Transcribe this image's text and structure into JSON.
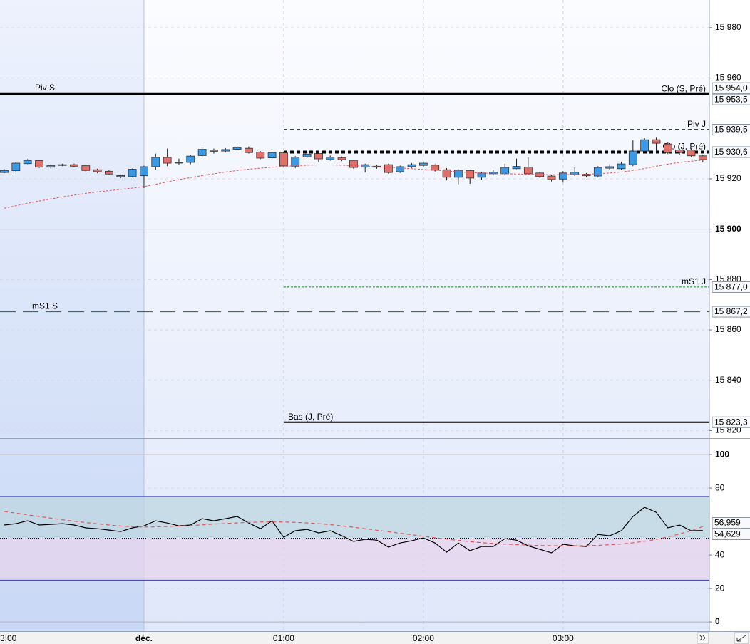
{
  "chart_data": [
    {
      "type": "candlestick",
      "categories": [
        "3:00",
        null,
        null,
        null,
        null,
        null,
        null,
        null,
        null,
        null,
        null,
        null,
        "déc.",
        null,
        null,
        null,
        null,
        null,
        null,
        null,
        null,
        null,
        null,
        null,
        "01:00",
        null,
        null,
        null,
        null,
        null,
        null,
        null,
        null,
        null,
        null,
        null,
        "02:00",
        null,
        null,
        null,
        null,
        null,
        null,
        null,
        null,
        null,
        null,
        null,
        "03:00",
        null,
        null,
        null,
        null,
        null,
        null,
        null,
        null,
        null,
        null,
        null,
        null
      ],
      "open": [
        15922.5,
        15923.2,
        15926.0,
        15927.2,
        15924.6,
        15925.3,
        15925.6,
        15925.2,
        15923.6,
        15923.0,
        15920.8,
        15921.0,
        15921.2,
        15924.8,
        15928.5,
        15926.3,
        15926.5,
        15929.2,
        15930.9,
        15931.0,
        15931.7,
        15932.1,
        15930.6,
        15928.3,
        15930.3,
        15925.0,
        15928.7,
        15930.0,
        15927.6,
        15928.3,
        15927.3,
        15924.6,
        15924.6,
        15925.6,
        15922.8,
        15924.8,
        15925.3,
        15925.4,
        15923.6,
        15920.6,
        15923.3,
        15920.6,
        15922.0,
        15922.0,
        15924.0,
        15924.6,
        15922.3,
        15921.1,
        15919.9,
        15921.6,
        15921.8,
        15921.1,
        15924.2,
        15924.0,
        15925.6,
        15931.0,
        15935.5,
        15933.8,
        15931.4,
        15931.4,
        15929.1
      ],
      "high": [
        15923.8,
        15926.5,
        15927.8,
        15927.6,
        15925.8,
        15926.0,
        15926.0,
        15925.5,
        15924.0,
        15923.4,
        15921.6,
        15924.1,
        15925.2,
        15930.0,
        15932.0,
        15928.0,
        15929.6,
        15932.3,
        15932.0,
        15932.2,
        15933.0,
        15932.8,
        15931.0,
        15930.8,
        15930.8,
        15929.0,
        15930.5,
        15931.0,
        15929.2,
        15928.8,
        15927.6,
        15926.0,
        15925.5,
        15926.0,
        15925.2,
        15926.2,
        15926.8,
        15925.8,
        15924.2,
        15923.8,
        15923.6,
        15922.8,
        15923.5,
        15926.0,
        15928.0,
        15928.5,
        15922.7,
        15921.5,
        15923.0,
        15924.5,
        15922.3,
        15925.0,
        15925.8,
        15926.8,
        15935.3,
        15936.1,
        15936.3,
        15934.4,
        15932.0,
        15932.0,
        15929.5
      ],
      "low": [
        15922.2,
        15922.8,
        15925.8,
        15924.3,
        15924.0,
        15925.0,
        15924.7,
        15922.8,
        15922.2,
        15921.5,
        15920.3,
        15920.6,
        15916.3,
        15923.5,
        15925.0,
        15925.5,
        15925.8,
        15928.8,
        15930.0,
        15930.5,
        15931.3,
        15930.0,
        15927.8,
        15927.8,
        15924.6,
        15924.3,
        15928.2,
        15926.6,
        15927.2,
        15927.0,
        15924.0,
        15922.5,
        15924.0,
        15922.0,
        15922.3,
        15924.3,
        15924.8,
        15922.9,
        15919.4,
        15917.8,
        15918.0,
        15919.6,
        15921.3,
        15921.3,
        15923.8,
        15921.5,
        15920.3,
        15919.0,
        15918.5,
        15921.1,
        15920.6,
        15920.6,
        15923.6,
        15923.6,
        15925.0,
        15930.4,
        15930.8,
        15929.8,
        15929.6,
        15928.7,
        15926.5
      ],
      "close": [
        15923.3,
        15926.2,
        15927.3,
        15924.6,
        15925.2,
        15925.6,
        15925.0,
        15923.3,
        15922.8,
        15921.9,
        15921.3,
        15923.8,
        15924.8,
        15928.5,
        15926.2,
        15926.5,
        15929.0,
        15931.7,
        15931.4,
        15931.6,
        15932.4,
        15930.4,
        15928.2,
        15930.4,
        15925.1,
        15928.6,
        15929.8,
        15927.9,
        15928.6,
        15927.6,
        15924.5,
        15925.6,
        15925.0,
        15922.5,
        15924.8,
        15925.6,
        15926.2,
        15923.4,
        15920.6,
        15923.4,
        15920.3,
        15922.3,
        15922.6,
        15924.5,
        15924.9,
        15922.0,
        15920.9,
        15919.7,
        15922.3,
        15922.6,
        15921.2,
        15924.5,
        15924.8,
        15925.9,
        15931.0,
        15935.5,
        15934.1,
        15930.4,
        15930.4,
        15929.1,
        15927.6
      ],
      "up_color": "#3b9ae6",
      "down_color": "#e2706a",
      "overlay": {
        "color": "#e05a5a",
        "values": [
          15908.3,
          15909.3,
          15910.3,
          15911.2,
          15912.0,
          15912.8,
          15913.5,
          15914.2,
          15914.8,
          15915.3,
          15915.8,
          15916.3,
          15916.9,
          15917.8,
          15918.8,
          15919.7,
          15920.5,
          15921.3,
          15922.0,
          15922.7,
          15923.3,
          15923.8,
          15924.2,
          15924.6,
          15924.9,
          15925.2,
          15925.4,
          15925.5,
          15925.5,
          15925.4,
          15925.2,
          15925.0,
          15924.8,
          15924.6,
          15924.3,
          15924.0,
          15923.7,
          15923.4,
          15923.1,
          15922.8,
          15922.5,
          15922.3,
          15922.1,
          15922.0,
          15921.9,
          15921.8,
          15921.7,
          15921.6,
          15921.6,
          15921.7,
          15921.8,
          15922.0,
          15922.3,
          15922.7,
          15923.3,
          15924.1,
          15925.0,
          15925.8,
          15926.5,
          15927.0,
          15927.4
        ]
      },
      "ylim": [
        15817,
        15991
      ],
      "yticks": [
        {
          "value": 15820,
          "label": "15 820"
        },
        {
          "value": 15840,
          "label": "15 840"
        },
        {
          "value": 15860,
          "label": "15 860"
        },
        {
          "value": 15880,
          "label": "15 880"
        },
        {
          "value": 15900,
          "label": "15 900"
        },
        {
          "value": 15920,
          "label": "15 920"
        },
        {
          "value": 15960,
          "label": "15 960"
        },
        {
          "value": 15980,
          "label": "15 980"
        }
      ],
      "grid": true,
      "levels": [
        {
          "name": "Piv S",
          "value": 15954.0,
          "label": "15 954,0",
          "color": "#000000",
          "dash": "solid"
        },
        {
          "name": "Clo (S, Pré)",
          "value": 15953.5,
          "label": "15 953,5",
          "color": "#000000",
          "dash": "solid"
        },
        {
          "name": "Piv J",
          "value": 15939.5,
          "label": "15 939,5",
          "color": "#000000",
          "dash": "dashed"
        },
        {
          "name": "Clo (J, Pré)",
          "value": 15930.6,
          "label": "15 930,6",
          "color": "#000000",
          "dash": "dashed"
        },
        {
          "name": "mS1 J",
          "value": 15877.0,
          "label": "15 877,0",
          "color": "#1a8a1a",
          "dash": "dotted"
        },
        {
          "name": "mS1 S",
          "value": 15867.2,
          "label": "15 867,2",
          "color": "#1a8a1a",
          "dash": "longdash"
        },
        {
          "name": "Bas (J, Pré)",
          "value": 15823.3,
          "label": "15 823,3",
          "color": "#000000",
          "dash": "solid"
        }
      ]
    },
    {
      "type": "line",
      "series": [
        {
          "color": "#000000",
          "last_label": "54,629",
          "values": [
            57.9,
            58.7,
            60.4,
            57.9,
            58.3,
            58.7,
            57.9,
            56.2,
            55.7,
            54.9,
            54.0,
            56.2,
            57.4,
            60.4,
            59.1,
            57.4,
            57.9,
            61.7,
            60.4,
            61.7,
            63.0,
            59.1,
            55.7,
            60.4,
            50.6,
            54.5,
            55.3,
            53.2,
            54.5,
            51.5,
            48.1,
            49.4,
            48.9,
            44.7,
            47.2,
            48.5,
            50.2,
            47.2,
            41.7,
            47.2,
            42.6,
            45.1,
            45.1,
            49.8,
            48.9,
            45.5,
            43.4,
            41.3,
            46.4,
            45.5,
            45.1,
            52.3,
            51.5,
            54.5,
            63.0,
            68.5,
            65.5,
            56.2,
            57.9,
            54.5,
            54.629
          ]
        },
        {
          "color": "#e05a5a",
          "dash": "dashed",
          "last_label": "56,959",
          "values": [
            66.0,
            65.0,
            64.0,
            63.0,
            62.0,
            61.0,
            60.2,
            59.4,
            58.6,
            57.9,
            57.3,
            56.9,
            56.7,
            56.8,
            57.0,
            57.3,
            57.6,
            58.0,
            58.4,
            58.8,
            59.2,
            59.5,
            59.7,
            59.8,
            59.7,
            59.5,
            59.2,
            58.7,
            58.1,
            57.4,
            56.6,
            55.7,
            54.8,
            53.9,
            53.0,
            52.1,
            51.2,
            50.3,
            49.5,
            48.7,
            48.0,
            47.4,
            46.9,
            46.5,
            46.2,
            45.9,
            45.7,
            45.6,
            45.5,
            45.5,
            45.6,
            45.8,
            46.1,
            46.6,
            47.3,
            48.2,
            49.3,
            50.8,
            52.6,
            54.6,
            56.959
          ]
        }
      ],
      "ylim": [
        -5.5,
        109.4
      ],
      "yticks": [
        0,
        20,
        40,
        80,
        100
      ],
      "grid": true,
      "upper": 75,
      "mid": 50,
      "lower": 25,
      "band_color": "#3a3aa8"
    }
  ]
}
